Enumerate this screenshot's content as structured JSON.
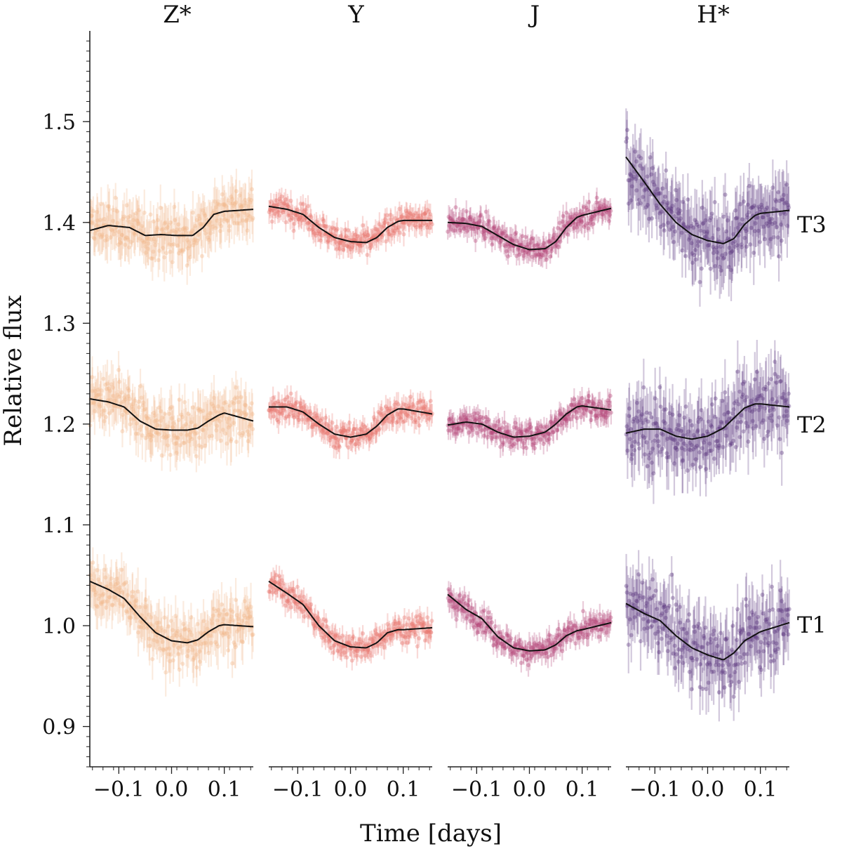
{
  "chart_data": {
    "type": "scatter",
    "description_labels": {
      "ylabel": "Relative flux",
      "xlabel": "Time [days]"
    },
    "ylim": [
      0.86,
      1.59
    ],
    "xlim": [
      -0.155,
      0.155
    ],
    "yticks": [
      0.9,
      1.0,
      1.1,
      1.2,
      1.3,
      1.4,
      1.5
    ],
    "ytick_labels": [
      "0.9",
      "1.0",
      "1.1",
      "1.2",
      "1.3",
      "1.4",
      "1.5"
    ],
    "xticks": [
      -0.1,
      0.0,
      0.1
    ],
    "xtick_labels": [
      "−0.1",
      "0.0",
      "0.1"
    ],
    "row_labels": [
      "T3",
      "T2",
      "T1"
    ],
    "panels": [
      {
        "title": "Z*",
        "color": "#f2b88c",
        "noise": 0.022,
        "series": [
          {
            "row": "T3",
            "model_t": [
              -0.155,
              -0.12,
              -0.08,
              -0.05,
              -0.02,
              0.01,
              0.04,
              0.06,
              0.08,
              0.1,
              0.155
            ],
            "model_flux": [
              1.392,
              1.397,
              1.395,
              1.387,
              1.388,
              1.387,
              1.387,
              1.395,
              1.408,
              1.411,
              1.413
            ]
          },
          {
            "row": "T2",
            "model_t": [
              -0.155,
              -0.12,
              -0.09,
              -0.06,
              -0.03,
              0.0,
              0.03,
              0.05,
              0.07,
              0.09,
              0.1,
              0.155
            ],
            "model_flux": [
              1.225,
              1.222,
              1.217,
              1.203,
              1.195,
              1.194,
              1.194,
              1.196,
              1.203,
              1.209,
              1.211,
              1.203
            ]
          },
          {
            "row": "T1",
            "model_t": [
              -0.155,
              -0.12,
              -0.09,
              -0.06,
              -0.03,
              0.0,
              0.03,
              0.05,
              0.07,
              0.09,
              0.1,
              0.155
            ],
            "model_flux": [
              1.044,
              1.036,
              1.027,
              1.009,
              0.993,
              0.985,
              0.983,
              0.986,
              0.994,
              1.0,
              1.001,
              0.999
            ]
          }
        ]
      },
      {
        "title": "Y",
        "color": "#e8766e",
        "noise": 0.011,
        "series": [
          {
            "row": "T3",
            "model_t": [
              -0.155,
              -0.12,
              -0.09,
              -0.06,
              -0.03,
              0.0,
              0.03,
              0.05,
              0.07,
              0.09,
              0.1,
              0.155
            ],
            "model_flux": [
              1.416,
              1.413,
              1.408,
              1.395,
              1.385,
              1.381,
              1.38,
              1.385,
              1.395,
              1.401,
              1.402,
              1.402
            ]
          },
          {
            "row": "T2",
            "model_t": [
              -0.155,
              -0.12,
              -0.09,
              -0.06,
              -0.03,
              0.0,
              0.03,
              0.05,
              0.07,
              0.09,
              0.1,
              0.155
            ],
            "model_flux": [
              1.217,
              1.217,
              1.212,
              1.2,
              1.19,
              1.187,
              1.19,
              1.198,
              1.209,
              1.215,
              1.215,
              1.21
            ]
          },
          {
            "row": "T1",
            "model_t": [
              -0.155,
              -0.12,
              -0.09,
              -0.06,
              -0.03,
              0.0,
              0.03,
              0.05,
              0.07,
              0.09,
              0.1,
              0.155
            ],
            "model_flux": [
              1.044,
              1.032,
              1.021,
              1.0,
              0.985,
              0.979,
              0.978,
              0.983,
              0.993,
              0.996,
              0.996,
              0.998
            ]
          }
        ]
      },
      {
        "title": "J",
        "color": "#b5477a",
        "noise": 0.011,
        "series": [
          {
            "row": "T3",
            "model_t": [
              -0.155,
              -0.12,
              -0.09,
              -0.06,
              -0.03,
              0.0,
              0.03,
              0.05,
              0.07,
              0.09,
              0.1,
              0.155
            ],
            "model_flux": [
              1.4,
              1.399,
              1.396,
              1.387,
              1.378,
              1.373,
              1.374,
              1.381,
              1.395,
              1.405,
              1.407,
              1.414
            ]
          },
          {
            "row": "T2",
            "model_t": [
              -0.155,
              -0.12,
              -0.09,
              -0.06,
              -0.03,
              0.0,
              0.03,
              0.05,
              0.07,
              0.09,
              0.1,
              0.155
            ],
            "model_flux": [
              1.199,
              1.202,
              1.2,
              1.192,
              1.187,
              1.188,
              1.192,
              1.2,
              1.21,
              1.217,
              1.218,
              1.214
            ]
          },
          {
            "row": "T1",
            "model_t": [
              -0.155,
              -0.12,
              -0.09,
              -0.06,
              -0.03,
              0.0,
              0.03,
              0.05,
              0.07,
              0.09,
              0.1,
              0.155
            ],
            "model_flux": [
              1.031,
              1.016,
              1.007,
              0.989,
              0.978,
              0.975,
              0.976,
              0.981,
              0.99,
              0.995,
              0.996,
              1.003
            ]
          }
        ]
      },
      {
        "title": "H*",
        "color": "#5e3a80",
        "noise": 0.03,
        "series": [
          {
            "row": "T3",
            "model_t": [
              -0.155,
              -0.12,
              -0.09,
              -0.06,
              -0.03,
              0.0,
              0.03,
              0.05,
              0.07,
              0.09,
              0.1,
              0.155
            ],
            "model_flux": [
              1.465,
              1.44,
              1.418,
              1.4,
              1.388,
              1.382,
              1.379,
              1.384,
              1.398,
              1.407,
              1.409,
              1.412
            ]
          },
          {
            "row": "T2",
            "model_t": [
              -0.155,
              -0.12,
              -0.09,
              -0.06,
              -0.03,
              0.0,
              0.03,
              0.05,
              0.07,
              0.09,
              0.1,
              0.155
            ],
            "model_flux": [
              1.191,
              1.195,
              1.195,
              1.188,
              1.185,
              1.188,
              1.196,
              1.206,
              1.216,
              1.22,
              1.22,
              1.217
            ]
          },
          {
            "row": "T1",
            "model_t": [
              -0.155,
              -0.12,
              -0.09,
              -0.06,
              -0.03,
              0.0,
              0.03,
              0.05,
              0.07,
              0.09,
              0.1,
              0.155
            ],
            "model_flux": [
              1.022,
              1.012,
              1.005,
              0.99,
              0.978,
              0.971,
              0.966,
              0.973,
              0.985,
              0.991,
              0.994,
              1.003
            ]
          }
        ]
      }
    ]
  }
}
